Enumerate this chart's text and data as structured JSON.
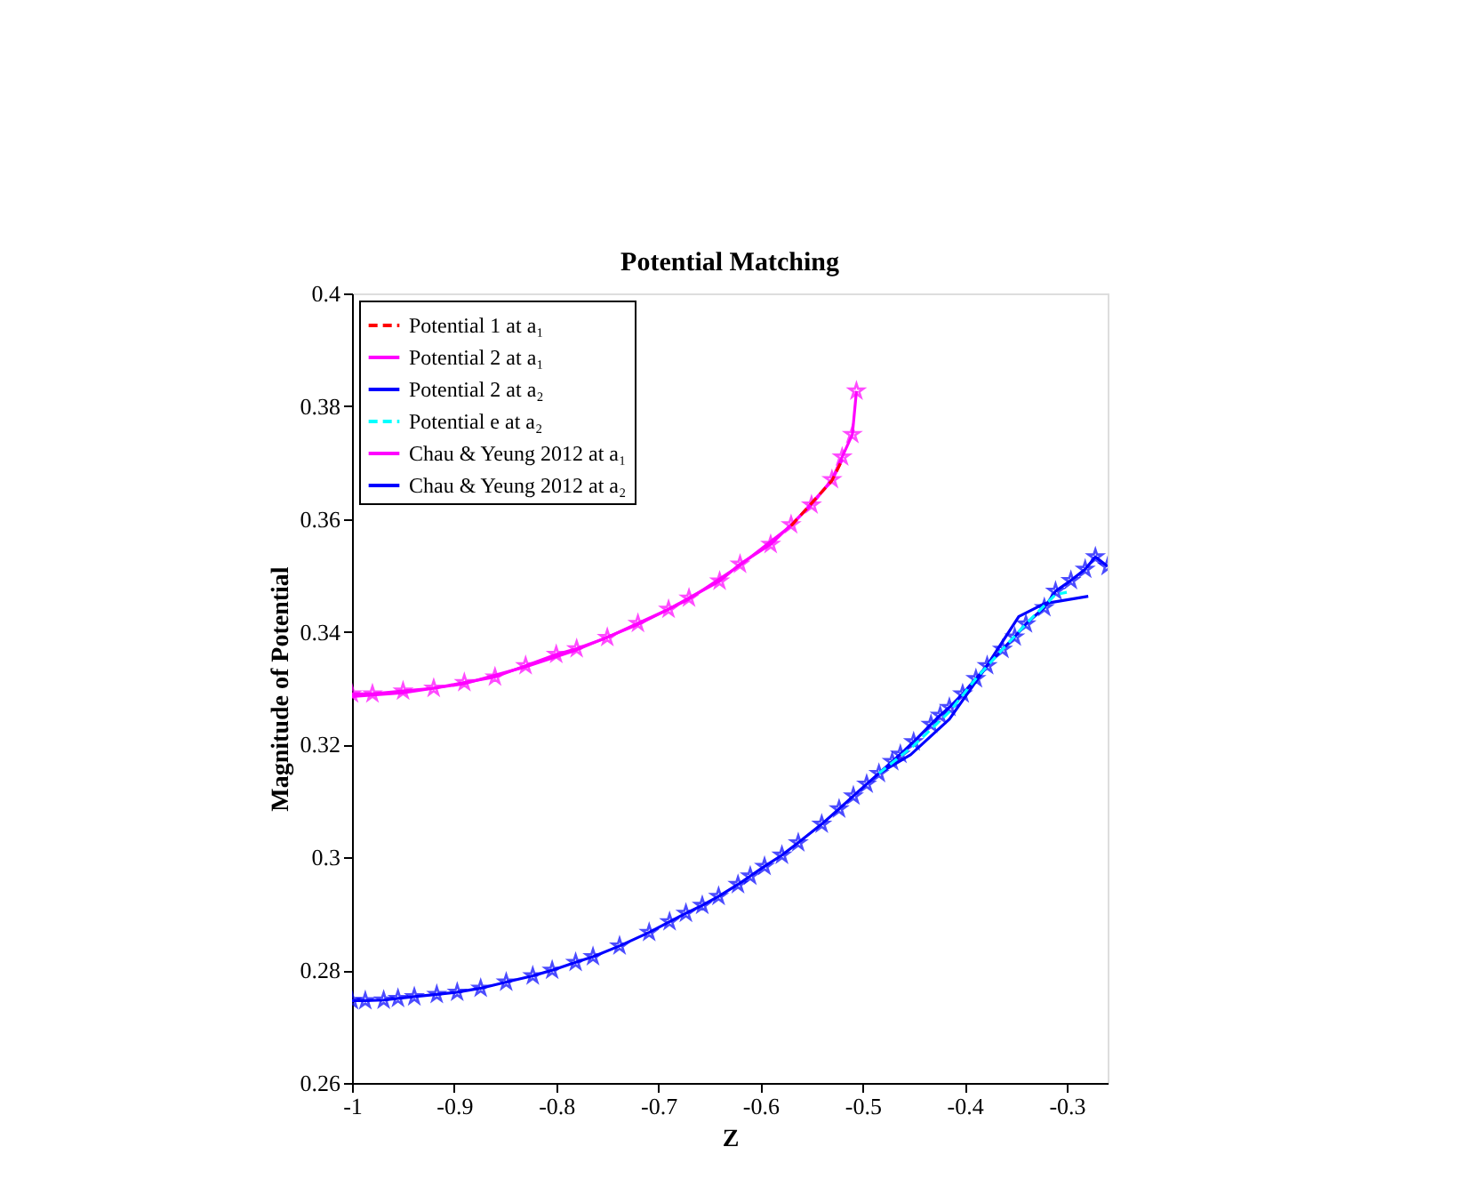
{
  "chart_data": {
    "type": "line",
    "title": "Potential Matching",
    "xlabel": "Z",
    "ylabel": "Magnitude of Potential",
    "xlim": [
      -1,
      -0.26
    ],
    "xticks": [
      -1,
      -0.9,
      -0.8,
      -0.7,
      -0.6,
      -0.5,
      -0.4,
      -0.3
    ],
    "ylim": [
      0.26,
      0.4
    ],
    "yticks": [
      0.26,
      0.28,
      0.3,
      0.32,
      0.34,
      0.36,
      0.38,
      0.4
    ],
    "grid": false,
    "legend": "top left",
    "series": [
      {
        "name": "Potential 1 at a₁",
        "color": "#ff0000",
        "line_style": "dashed",
        "marker": "none",
        "x": [
          -0.57,
          -0.53,
          -0.52
        ],
        "values": [
          0.3588,
          0.3668,
          0.3705
        ]
      },
      {
        "name": "Potential 2 at a₁",
        "color": "#ff00ff",
        "line_style": "solid",
        "marker": "none",
        "x": [
          -1,
          -0.95,
          -0.89,
          -0.83,
          -0.78,
          -0.72,
          -0.67,
          -0.62,
          -0.57,
          -0.53,
          -0.52
        ],
        "values": [
          0.3285,
          0.3292,
          0.3308,
          0.3338,
          0.3368,
          0.3413,
          0.3458,
          0.3518,
          0.3588,
          0.3668,
          0.3705
        ]
      },
      {
        "name": "Potential 2 at a₂",
        "color": "#0000ff",
        "line_style": "solid",
        "marker": "none",
        "x": [
          -0.484,
          -0.453,
          -0.415,
          -0.38,
          -0.347,
          -0.322,
          -0.279
        ],
        "values": [
          0.3149,
          0.3182,
          0.3245,
          0.3335,
          0.3427,
          0.345,
          0.3463
        ]
      },
      {
        "name": "Potential e at a₂",
        "color": "#00ffff",
        "line_style": "dashed",
        "marker": "none",
        "x": [
          -0.484,
          -0.45,
          -0.415,
          -0.389,
          -0.363,
          -0.34,
          -0.311,
          -0.3
        ],
        "values": [
          0.3149,
          0.3198,
          0.3258,
          0.3317,
          0.3369,
          0.3414,
          0.3466,
          0.347
        ]
      },
      {
        "name": "Chau & Yeung 2012 at a₁",
        "color": "#ff00ff",
        "line_style": "solid",
        "marker": "star",
        "x": [
          -1,
          -0.98,
          -0.95,
          -0.92,
          -0.89,
          -0.86,
          -0.83,
          -0.8,
          -0.78,
          -0.75,
          -0.72,
          -0.69,
          -0.67,
          -0.64,
          -0.62,
          -0.59,
          -0.57,
          -0.55,
          -0.53,
          -0.52,
          -0.51,
          -0.506
        ],
        "values": [
          0.329,
          0.329,
          0.3295,
          0.33,
          0.331,
          0.332,
          0.334,
          0.336,
          0.337,
          0.339,
          0.3415,
          0.344,
          0.346,
          0.349,
          0.352,
          0.3555,
          0.359,
          0.3625,
          0.367,
          0.371,
          0.375,
          0.3827
        ]
      },
      {
        "name": "Chau & Yeung 2012 at a₂",
        "color": "#0000ff",
        "line_style": "solid",
        "marker": "star",
        "x": [
          -1,
          -0.987,
          -0.969,
          -0.955,
          -0.939,
          -0.917,
          -0.897,
          -0.874,
          -0.849,
          -0.823,
          -0.804,
          -0.781,
          -0.764,
          -0.738,
          -0.709,
          -0.689,
          -0.673,
          -0.657,
          -0.641,
          -0.622,
          -0.61,
          -0.596,
          -0.579,
          -0.563,
          -0.54,
          -0.523,
          -0.509,
          -0.496,
          -0.484,
          -0.471,
          -0.463,
          -0.45,
          -0.433,
          -0.424,
          -0.415,
          -0.402,
          -0.389,
          -0.378,
          -0.363,
          -0.351,
          -0.34,
          -0.322,
          -0.311,
          -0.296,
          -0.282,
          -0.272,
          -0.26
        ],
        "values": [
          0.2746,
          0.2746,
          0.2747,
          0.275,
          0.2753,
          0.2757,
          0.2761,
          0.2768,
          0.2779,
          0.279,
          0.28,
          0.2814,
          0.2824,
          0.2843,
          0.2867,
          0.2886,
          0.2901,
          0.2915,
          0.2931,
          0.2952,
          0.2967,
          0.2984,
          0.3004,
          0.3026,
          0.3059,
          0.3086,
          0.3109,
          0.313,
          0.3149,
          0.317,
          0.3183,
          0.3205,
          0.3236,
          0.3252,
          0.3266,
          0.329,
          0.3317,
          0.334,
          0.3369,
          0.3391,
          0.3414,
          0.3443,
          0.3472,
          0.3491,
          0.3511,
          0.3533,
          0.3516
        ]
      }
    ]
  }
}
